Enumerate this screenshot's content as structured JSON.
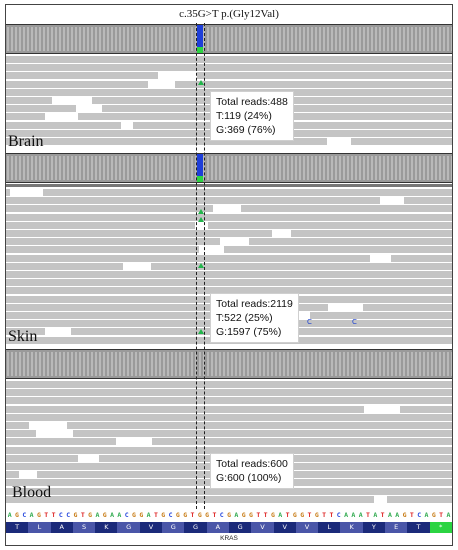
{
  "title": "c.35G>T p.(Gly12Val)",
  "tracks": [
    {
      "tissue": "Brain",
      "info": [
        "Total reads:488",
        "T:119 (24%)",
        "G:369 (76%)"
      ]
    },
    {
      "tissue": "Skin",
      "info": [
        "Total reads:2119",
        "T:522 (25%)",
        "G:1597 (75%)"
      ]
    },
    {
      "tissue": "Blood",
      "info": [
        "Total reads:600",
        "G:600 (100%)"
      ]
    }
  ],
  "mismatch_label": "C",
  "sequence": "AGCAGTTCCGTGAGAACGGATGCGGTGGTCGAGGTTGATGGTGTTCAAATATAAGTCAGTA",
  "base_colors": {
    "A": "#2aa84a",
    "C": "#2244dd",
    "G": "#c77a12",
    "T": "#dd2222"
  },
  "amino_acids": [
    "T",
    "L",
    "A",
    "S",
    "K",
    "G",
    "V",
    "G",
    "G",
    "A",
    "G",
    "V",
    "V",
    "V",
    "L",
    "K",
    "Y",
    "E",
    "T",
    "*"
  ],
  "amino_colors": [
    "#1b2a7a",
    "#4a56a8"
  ],
  "stop_color": "#2bd442",
  "gene": "KRAS",
  "colors": {
    "read": "#c4c4c4",
    "coverage": "#9a9a9a",
    "variant_T": "#1f3fd8",
    "variant_G": "#2bd442"
  }
}
